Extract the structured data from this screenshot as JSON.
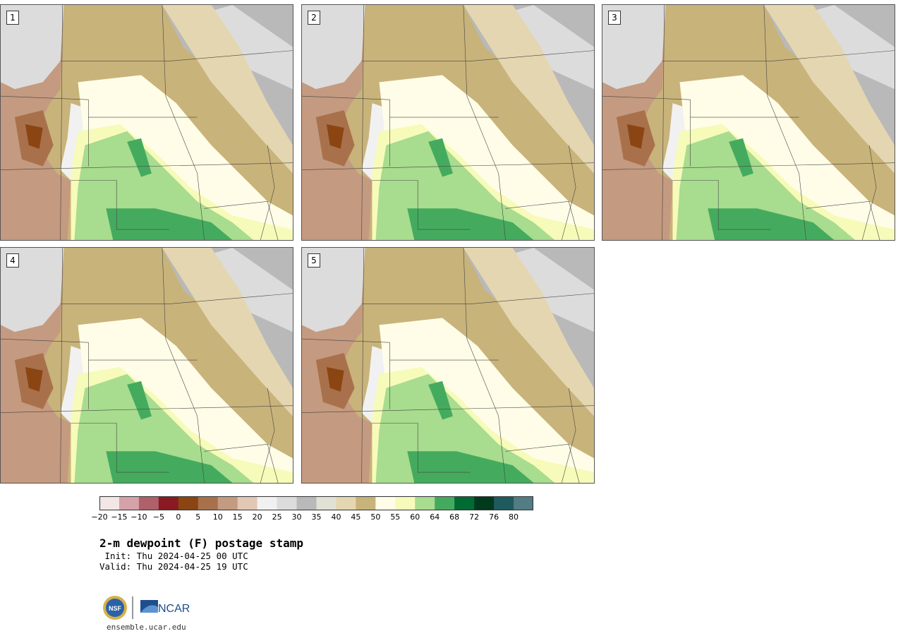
{
  "panels": [
    {
      "label": "1"
    },
    {
      "label": "2"
    },
    {
      "label": "3"
    },
    {
      "label": "4"
    },
    {
      "label": "5"
    }
  ],
  "colorbar": {
    "bins": [
      {
        "color": "#f3e6e6"
      },
      {
        "color": "#d4a2a8"
      },
      {
        "color": "#b0606a"
      },
      {
        "color": "#8a1a22"
      },
      {
        "color": "#8b4513"
      },
      {
        "color": "#a8714c"
      },
      {
        "color": "#c49a80"
      },
      {
        "color": "#e2c7b4"
      },
      {
        "color": "#f1f1f1"
      },
      {
        "color": "#dcdcdc"
      },
      {
        "color": "#b9b9b9"
      },
      {
        "color": "#e1e1d4"
      },
      {
        "color": "#e4d6b0"
      },
      {
        "color": "#c8b37a"
      },
      {
        "color": "#fffde8"
      },
      {
        "color": "#f7fbb9"
      },
      {
        "color": "#a8dc8e"
      },
      {
        "color": "#44ab5e"
      },
      {
        "color": "#006b33"
      },
      {
        "color": "#003a1d"
      },
      {
        "color": "#1e5a5e"
      },
      {
        "color": "#527d84"
      }
    ],
    "tick_labels": [
      "−20",
      "−15",
      "−10",
      "−5",
      "0",
      "5",
      "10",
      "15",
      "20",
      "25",
      "30",
      "35",
      "40",
      "45",
      "50",
      "55",
      "60",
      "64",
      "68",
      "72",
      "76",
      "80"
    ]
  },
  "title": {
    "main": "2-m dewpoint (F) postage stamp",
    "init": " Init: Thu 2024-04-25 00 UTC",
    "valid": "Valid: Thu 2024-04-25 19 UTC"
  },
  "logos": {
    "nsf": "NSF",
    "ncar": "NCAR"
  },
  "site": "ensemble.ucar.edu"
}
